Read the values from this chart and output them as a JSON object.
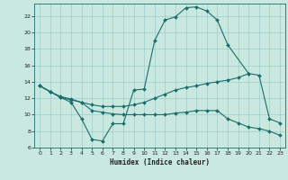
{
  "xlabel": "Humidex (Indice chaleur)",
  "curve1_x": [
    0,
    1,
    2,
    3,
    4,
    5,
    6,
    7,
    8,
    9,
    10,
    11,
    12,
    13,
    14,
    15,
    16,
    17,
    18,
    20,
    21,
    22,
    23
  ],
  "curve1_y": [
    13.5,
    12.8,
    12.1,
    11.5,
    9.5,
    7.0,
    6.8,
    8.9,
    8.9,
    13.0,
    13.1,
    19.0,
    21.5,
    21.9,
    23.0,
    23.1,
    22.6,
    21.5,
    18.5,
    15.0,
    14.8,
    9.5,
    9.0
  ],
  "curve2_x": [
    0,
    1,
    2,
    3,
    4,
    5,
    6,
    7,
    8,
    9,
    10,
    11,
    12,
    13,
    14,
    15,
    16,
    17,
    18,
    19,
    20
  ],
  "curve2_y": [
    13.5,
    12.8,
    12.2,
    11.9,
    11.5,
    11.2,
    11.0,
    11.0,
    11.0,
    11.2,
    11.5,
    12.0,
    12.5,
    13.0,
    13.3,
    13.5,
    13.8,
    14.0,
    14.2,
    14.5,
    15.0
  ],
  "curve3_x": [
    0,
    1,
    2,
    3,
    4,
    5,
    6,
    7,
    8,
    9,
    10,
    11,
    12,
    13,
    14,
    15,
    16,
    17,
    18,
    19,
    20,
    21,
    22,
    23
  ],
  "curve3_y": [
    13.5,
    12.8,
    12.1,
    11.8,
    11.5,
    10.5,
    10.3,
    10.1,
    10.0,
    10.0,
    10.0,
    10.0,
    10.0,
    10.2,
    10.3,
    10.5,
    10.5,
    10.5,
    9.5,
    9.0,
    8.5,
    8.3,
    8.0,
    7.5
  ],
  "bg_color": "#c8e8e0",
  "grid_color": "#9ecece",
  "line_color": "#1a6e6a",
  "xlim": [
    -0.5,
    23.5
  ],
  "ylim": [
    6,
    23.5
  ],
  "yticks": [
    6,
    8,
    10,
    12,
    14,
    16,
    18,
    20,
    22
  ],
  "xticks": [
    0,
    1,
    2,
    3,
    4,
    5,
    6,
    7,
    8,
    9,
    10,
    11,
    12,
    13,
    14,
    15,
    16,
    17,
    18,
    19,
    20,
    21,
    22,
    23
  ]
}
